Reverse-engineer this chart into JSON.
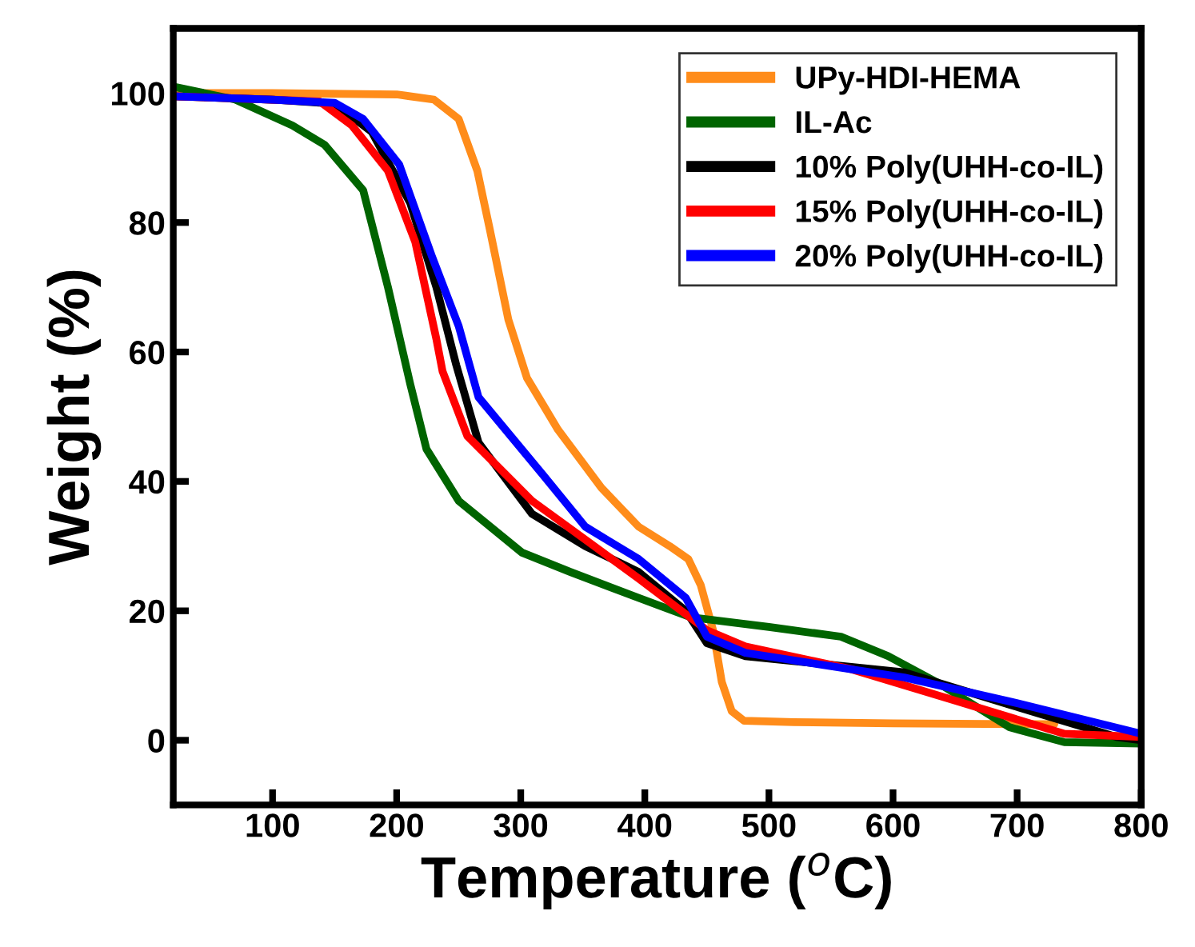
{
  "chart_data": {
    "type": "line",
    "xlabel": "Temperature ($^{o}$C)",
    "ylabel": "Weight (%)",
    "xlim": [
      20,
      800
    ],
    "ylim": [
      -10,
      110
    ],
    "xticks": [
      100,
      200,
      300,
      400,
      500,
      600,
      700,
      800
    ],
    "yticks": [
      0,
      20,
      40,
      60,
      80,
      100
    ],
    "grid": false,
    "legend": "top right",
    "marker": "none",
    "line_style": "solid",
    "series": [
      {
        "name": "UPy-HDI-HEMA",
        "color": "#ff8c1a",
        "x": [
          20,
          100,
          200,
          230,
          250,
          265,
          275,
          290,
          305,
          330,
          365,
          395,
          420,
          435,
          445,
          455,
          462,
          470,
          480,
          520,
          600,
          700,
          730
        ],
        "values": [
          100,
          100,
          99.8,
          99,
          96,
          88,
          79,
          65,
          56,
          48,
          39,
          33,
          30,
          28,
          24,
          17,
          9,
          4.5,
          3,
          2.8,
          2.6,
          2.5,
          2.5
        ]
      },
      {
        "name": "IL-Ac",
        "color": "#006400",
        "x": [
          20,
          70,
          116,
          142,
          173,
          193,
          211,
          224,
          250,
          301,
          340,
          395,
          437,
          500,
          558,
          596,
          635,
          694,
          738,
          800
        ],
        "values": [
          101,
          99,
          95,
          92,
          85,
          70,
          55,
          45,
          37,
          29,
          26,
          22,
          19,
          17.5,
          16,
          13,
          9,
          2,
          -0.3,
          -0.5
        ]
      },
      {
        "name": "10% Poly(UHH-co-IL)",
        "color": "#000000",
        "x": [
          20,
          100,
          140,
          155,
          180,
          211,
          232,
          248,
          266,
          309,
          352,
          395,
          433,
          450,
          481,
          609,
          694,
          780,
          800
        ],
        "values": [
          99.5,
          99,
          98.5,
          97.7,
          94,
          83,
          70,
          58,
          46,
          35,
          30,
          26,
          20,
          15,
          13,
          10.5,
          5.5,
          0.5,
          0
        ]
      },
      {
        "name": "15% Poly(UHH-co-IL)",
        "color": "#ff0000",
        "x": [
          20,
          100,
          138,
          164,
          193,
          215,
          232,
          237,
          257,
          309,
          352,
          395,
          450,
          481,
          566,
          652,
          738,
          800
        ],
        "values": [
          99.5,
          99,
          98.7,
          95,
          88,
          77,
          62,
          57,
          47,
          37,
          31,
          25,
          17,
          14.5,
          11,
          6,
          1,
          0.5
        ]
      },
      {
        "name": "20% Poly(UHH-co-IL)",
        "color": "#0000ff",
        "x": [
          20,
          100,
          150,
          173,
          202,
          228,
          250,
          266,
          318,
          352,
          395,
          433,
          450,
          481,
          609,
          694,
          800
        ],
        "values": [
          99.5,
          99,
          98.5,
          96,
          89,
          75,
          64,
          53,
          41,
          33,
          28,
          22,
          16,
          13.5,
          9.7,
          6,
          1
        ]
      }
    ]
  }
}
